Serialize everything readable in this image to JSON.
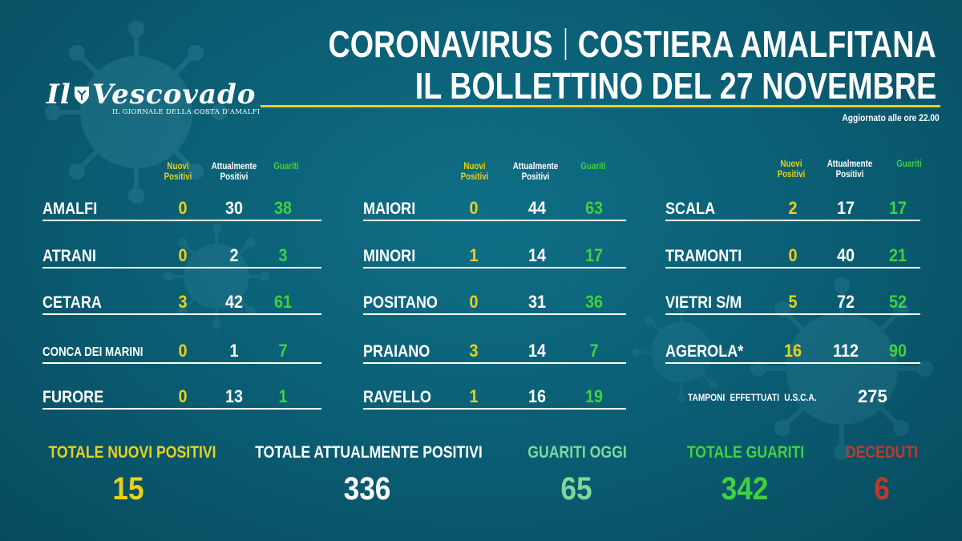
{
  "header": {
    "title_left": "CORONAVIRUS",
    "title_right": "COSTIERA AMALFITANA",
    "subtitle": "IL BOLLETTINO DEL 27 NOVEMBRE",
    "updated": "Aggiornato alle ore 22.00"
  },
  "logo": {
    "left": "Il",
    "right": "Vescovado",
    "tagline": "IL GIORNALE DELLA COSTA D'AMALFI"
  },
  "column_headers": {
    "new_line1": "Nuovi",
    "new_line2": "Positivi",
    "current_line1": "Attualmente",
    "current_line2": "Positivi",
    "recovered": "Guariti"
  },
  "columns": [
    {
      "rows": [
        {
          "name": "AMALFI",
          "new": "0",
          "current": "30",
          "recovered": "38"
        },
        {
          "name": "ATRANI",
          "new": "0",
          "current": "2",
          "recovered": "3"
        },
        {
          "name": "CETARA",
          "new": "3",
          "current": "42",
          "recovered": "61"
        },
        {
          "name": "CONCA DEI MARINI",
          "new": "0",
          "current": "1",
          "recovered": "7"
        },
        {
          "name": "FURORE",
          "new": "0",
          "current": "13",
          "recovered": "1"
        }
      ]
    },
    {
      "rows": [
        {
          "name": "MAIORI",
          "new": "0",
          "current": "44",
          "recovered": "63"
        },
        {
          "name": "MINORI",
          "new": "1",
          "current": "14",
          "recovered": "17"
        },
        {
          "name": "POSITANO",
          "new": "0",
          "current": "31",
          "recovered": "36"
        },
        {
          "name": "PRAIANO",
          "new": "3",
          "current": "14",
          "recovered": "7"
        },
        {
          "name": "RAVELLO",
          "new": "1",
          "current": "16",
          "recovered": "19"
        }
      ]
    },
    {
      "rows": [
        {
          "name": "SCALA",
          "new": "2",
          "current": "17",
          "recovered": "17"
        },
        {
          "name": "TRAMONTI",
          "new": "0",
          "current": "40",
          "recovered": "21"
        },
        {
          "name": "VIETRI S/M",
          "new": "5",
          "current": "72",
          "recovered": "52"
        },
        {
          "name": "AGEROLA*",
          "new": "16",
          "current": "112",
          "recovered": "90"
        }
      ]
    }
  ],
  "tamponi": {
    "label": "TAMPONI EFFETTUATI U.S.C.A.",
    "value": "275"
  },
  "totals": {
    "new_label": "TOTALE NUOVI POSITIVI",
    "new_value": "15",
    "current_label": "TOTALE ATTUALMENTE POSITIVI",
    "current_value": "336",
    "today_label": "GUARITI OGGI",
    "today_value": "65",
    "recovered_label": "TOTALE GUARITI",
    "recovered_value": "342",
    "deaths_label": "DECEDUTI",
    "deaths_value": "6"
  },
  "colors": {
    "background": "#0a5a70",
    "accent_yellow": "#e8d11a",
    "accent_green": "#3fd23f",
    "accent_red": "#c0392b"
  }
}
